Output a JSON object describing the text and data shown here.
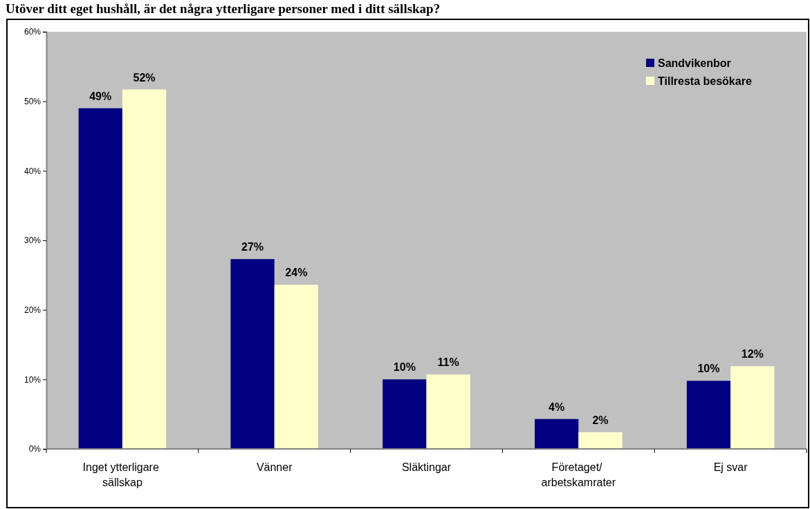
{
  "chart_data": {
    "type": "bar",
    "title": "Utöver ditt eget hushåll, är det några ytterligare personer med i ditt sällskap?",
    "categories": [
      "Inget ytterligare sällskap",
      "Vänner",
      "Släktingar",
      "Företaget/ arbetskamrater",
      "Ej svar"
    ],
    "series": [
      {
        "name": "Sandvikenbor",
        "color": "#000080",
        "values": [
          49.0,
          27.3,
          10.0,
          4.3,
          9.8
        ],
        "value_labels": [
          "49%",
          "27%",
          "10%",
          "4%",
          "10%"
        ]
      },
      {
        "name": "Tillresta besökare",
        "color": "#ffffcc",
        "values": [
          51.7,
          23.6,
          10.7,
          2.4,
          11.9
        ],
        "value_labels": [
          "52%",
          "24%",
          "11%",
          "2%",
          "12%"
        ]
      }
    ],
    "ylim": [
      0,
      60
    ],
    "yticks": [
      {
        "value": 0,
        "label": "0%"
      },
      {
        "value": 10,
        "label": "10%"
      },
      {
        "value": 20,
        "label": "20%"
      },
      {
        "value": 30,
        "label": "30%"
      },
      {
        "value": 40,
        "label": "40%"
      },
      {
        "value": 50,
        "label": "50%"
      },
      {
        "value": 60,
        "label": "60%"
      }
    ],
    "grid": false,
    "legend": "top right"
  }
}
